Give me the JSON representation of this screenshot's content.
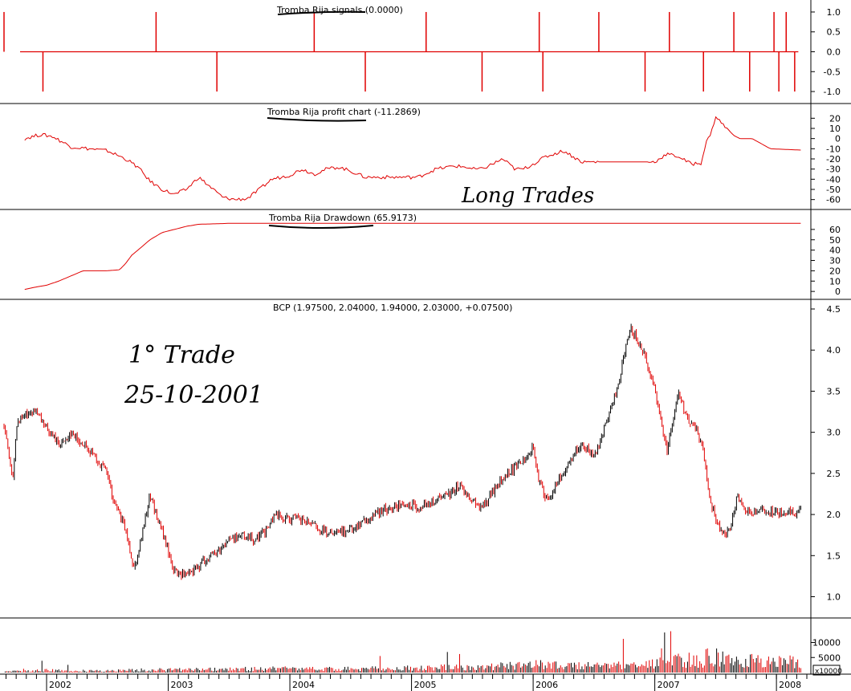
{
  "colors": {
    "signal": "#e00000",
    "price_up": "#000000",
    "price_down": "#e00000",
    "frame": "#000000",
    "ink": "#000000"
  },
  "annotations": {
    "long_trades": "Long Trades",
    "first_trade_title": "1° Trade",
    "first_trade_date": "25-10-2001"
  },
  "x_axis": {
    "labels": [
      "2002",
      "2003",
      "2004",
      "2005",
      "2006",
      "2007",
      "2008"
    ]
  },
  "chart_data": [
    {
      "type": "line",
      "title": "Tromba Rija signals (0.0000)",
      "ylim": [
        -1.1,
        1.1
      ],
      "yticks": [
        "1.0",
        "0.5",
        "0.0",
        "-0.5",
        "-1.0"
      ],
      "ytick_values": [
        1.0,
        0.5,
        0.0,
        -0.5,
        -1.0
      ],
      "series": [
        {
          "x": [
            2001.65,
            2001.97,
            2002.9,
            2003.4,
            2004.2,
            2004.62,
            2005.12,
            2005.58,
            2006.05,
            2006.08,
            2006.54,
            2006.92,
            2007.12,
            2007.4,
            2007.65,
            2007.78,
            2007.98,
            2008.02,
            2008.08,
            2008.15
          ],
          "values": [
            1,
            -1,
            1,
            -1,
            1,
            -1,
            1,
            -1,
            1,
            -1,
            1,
            -1,
            1,
            -1,
            1,
            -1,
            1,
            -1,
            1,
            -1
          ]
        }
      ]
    },
    {
      "type": "line",
      "title": "Tromba Rija profit chart (-11.2869)",
      "ylim": [
        -65,
        25
      ],
      "yticks": [
        "20",
        "10",
        "0",
        "-10",
        "-20",
        "-30",
        "-40",
        "-50",
        "-60"
      ],
      "ytick_values": [
        20,
        10,
        0,
        -10,
        -20,
        -30,
        -40,
        -50,
        -60
      ],
      "series": [
        {
          "x": [
            2001.82,
            2001.95,
            2002.05,
            2002.2,
            2002.35,
            2002.5,
            2002.65,
            2002.75,
            2002.85,
            2002.95,
            2003.05,
            2003.15,
            2003.25,
            2003.35,
            2003.45,
            2003.55,
            2003.65,
            2003.75,
            2003.85,
            2004.0,
            2004.1,
            2004.2,
            2004.3,
            2004.4,
            2004.5,
            2004.62,
            2004.8,
            2004.95,
            2005.05,
            2005.2,
            2005.35,
            2005.45,
            2005.5,
            2005.58,
            2005.75,
            2005.85,
            2005.92,
            2006.0,
            2006.1,
            2006.25,
            2006.4,
            2006.55,
            2006.7,
            2006.9,
            2007.0,
            2007.1,
            2007.2,
            2007.3,
            2007.38,
            2007.42,
            2007.47,
            2007.5,
            2007.55,
            2007.65,
            2007.7,
            2007.8,
            2007.95,
            2008.2
          ],
          "values": [
            0,
            4,
            2,
            -8,
            -10,
            -12,
            -20,
            -28,
            -42,
            -50,
            -55,
            -50,
            -38,
            -48,
            -58,
            -60,
            -59,
            -50,
            -40,
            -36,
            -30,
            -35,
            -30,
            -28,
            -32,
            -38,
            -38,
            -38,
            -38,
            -30,
            -27,
            -28,
            -30,
            -30,
            -20,
            -30,
            -30,
            -25,
            -18,
            -12,
            -23,
            -23,
            -23,
            -23,
            -23,
            -15,
            -18,
            -25,
            -24,
            -5,
            8,
            22,
            15,
            3,
            0,
            0,
            -10,
            -11.29
          ]
        }
      ]
    },
    {
      "type": "line",
      "title": "Tromba Rija Drawdown (65.9173)",
      "ylim": [
        -3,
        70
      ],
      "yticks": [
        "60",
        "50",
        "40",
        "30",
        "20",
        "10",
        "0"
      ],
      "ytick_values": [
        60,
        50,
        40,
        30,
        20,
        10,
        0
      ],
      "series": [
        {
          "x": [
            2001.82,
            2001.9,
            2002.0,
            2002.1,
            2002.2,
            2002.3,
            2002.4,
            2002.5,
            2002.6,
            2002.65,
            2002.7,
            2002.75,
            2002.8,
            2002.85,
            2002.95,
            2003.05,
            2003.15,
            2003.25,
            2003.4,
            2003.5,
            2003.6,
            2008.2
          ],
          "values": [
            2,
            4,
            6,
            10,
            15,
            20,
            20,
            20,
            21,
            27,
            35,
            40,
            45,
            50,
            57,
            60,
            63,
            65,
            65.5,
            65.9,
            65.92,
            65.92
          ]
        }
      ]
    },
    {
      "type": "line",
      "title": "BCP (1.97500, 2.04000, 1.94000, 2.03000, +0.07500)",
      "ylim": [
        0.8,
        4.5
      ],
      "yticks": [
        "4.5",
        "4.0",
        "3.5",
        "3.0",
        "2.5",
        "2.0",
        "1.5",
        "1.0"
      ],
      "ytick_values": [
        4.5,
        4.0,
        3.5,
        3.0,
        2.5,
        2.0,
        1.5,
        1.0
      ],
      "series": [
        {
          "name": "BCP",
          "x": [
            2001.65,
            2001.72,
            2001.75,
            2001.8,
            2001.9,
            2001.95,
            2002.0,
            2002.05,
            2002.12,
            2002.2,
            2002.3,
            2002.4,
            2002.5,
            2002.55,
            2002.6,
            2002.65,
            2002.72,
            2002.8,
            2002.85,
            2002.9,
            2002.95,
            2003.0,
            2003.05,
            2003.1,
            2003.15,
            2003.2,
            2003.3,
            2003.4,
            2003.5,
            2003.6,
            2003.7,
            2003.8,
            2003.88,
            2003.95,
            2004.05,
            2004.15,
            2004.25,
            2004.35,
            2004.45,
            2004.6,
            2004.75,
            2004.9,
            2005.0,
            2005.1,
            2005.25,
            2005.4,
            2005.55,
            2005.6,
            2005.7,
            2005.8,
            2006.0,
            2006.05,
            2006.1,
            2006.15,
            2006.2,
            2006.3,
            2006.35,
            2006.4,
            2006.5,
            2006.6,
            2006.7,
            2006.8,
            2006.9,
            2007.0,
            2007.1,
            2007.2,
            2007.25,
            2007.3,
            2007.35,
            2007.4,
            2007.45,
            2007.5,
            2007.55,
            2007.62,
            2007.68,
            2007.75,
            2007.8,
            2007.85,
            2007.9,
            2007.95,
            2008.0,
            2008.05,
            2008.1,
            2008.15,
            2008.2
          ],
          "values": [
            3.1,
            2.4,
            3.05,
            3.2,
            3.25,
            3.15,
            3.05,
            2.95,
            2.85,
            3.0,
            2.85,
            2.7,
            2.5,
            2.15,
            2.0,
            1.8,
            1.35,
            1.85,
            2.25,
            2.0,
            1.8,
            1.55,
            1.3,
            1.28,
            1.25,
            1.3,
            1.45,
            1.55,
            1.7,
            1.75,
            1.7,
            1.8,
            2.0,
            1.95,
            1.95,
            1.9,
            1.8,
            1.75,
            1.8,
            1.9,
            2.05,
            2.1,
            2.1,
            2.1,
            2.2,
            2.35,
            2.1,
            2.1,
            2.35,
            2.5,
            2.8,
            2.4,
            2.2,
            2.25,
            2.4,
            2.6,
            2.8,
            2.85,
            2.7,
            3.1,
            3.6,
            4.3,
            4.0,
            3.5,
            2.8,
            3.5,
            3.2,
            3.1,
            3.0,
            2.75,
            2.2,
            1.95,
            1.75,
            1.8,
            2.25,
            2.03,
            2.03,
            2.03,
            2.03,
            2.03,
            2.03,
            2.03,
            2.03,
            2.03,
            2.03
          ]
        }
      ]
    },
    {
      "type": "bar",
      "title": "",
      "ylim": [
        0,
        16000
      ],
      "yticks": [
        "10000",
        "5000"
      ],
      "ytick_values": [
        10000,
        5000
      ],
      "unit_label": "x10000",
      "series": [
        {
          "name": "volume",
          "x": [
            2001.8,
            2002.0,
            2002.2,
            2002.5,
            2002.8,
            2003.0,
            2003.5,
            2004.0,
            2004.5,
            2005.0,
            2005.5,
            2005.8,
            2006.0,
            2006.2,
            2006.5,
            2006.8,
            2007.0,
            2007.2,
            2007.4,
            2007.5,
            2007.6,
            2007.8,
            2008.0,
            2008.2
          ],
          "values": [
            500,
            900,
            600,
            800,
            1000,
            1100,
            1300,
            1500,
            1400,
            1700,
            2300,
            2600,
            3000,
            3200,
            2800,
            2600,
            3500,
            4500,
            5500,
            6500,
            5000,
            4800,
            4500,
            3800
          ]
        }
      ]
    }
  ]
}
